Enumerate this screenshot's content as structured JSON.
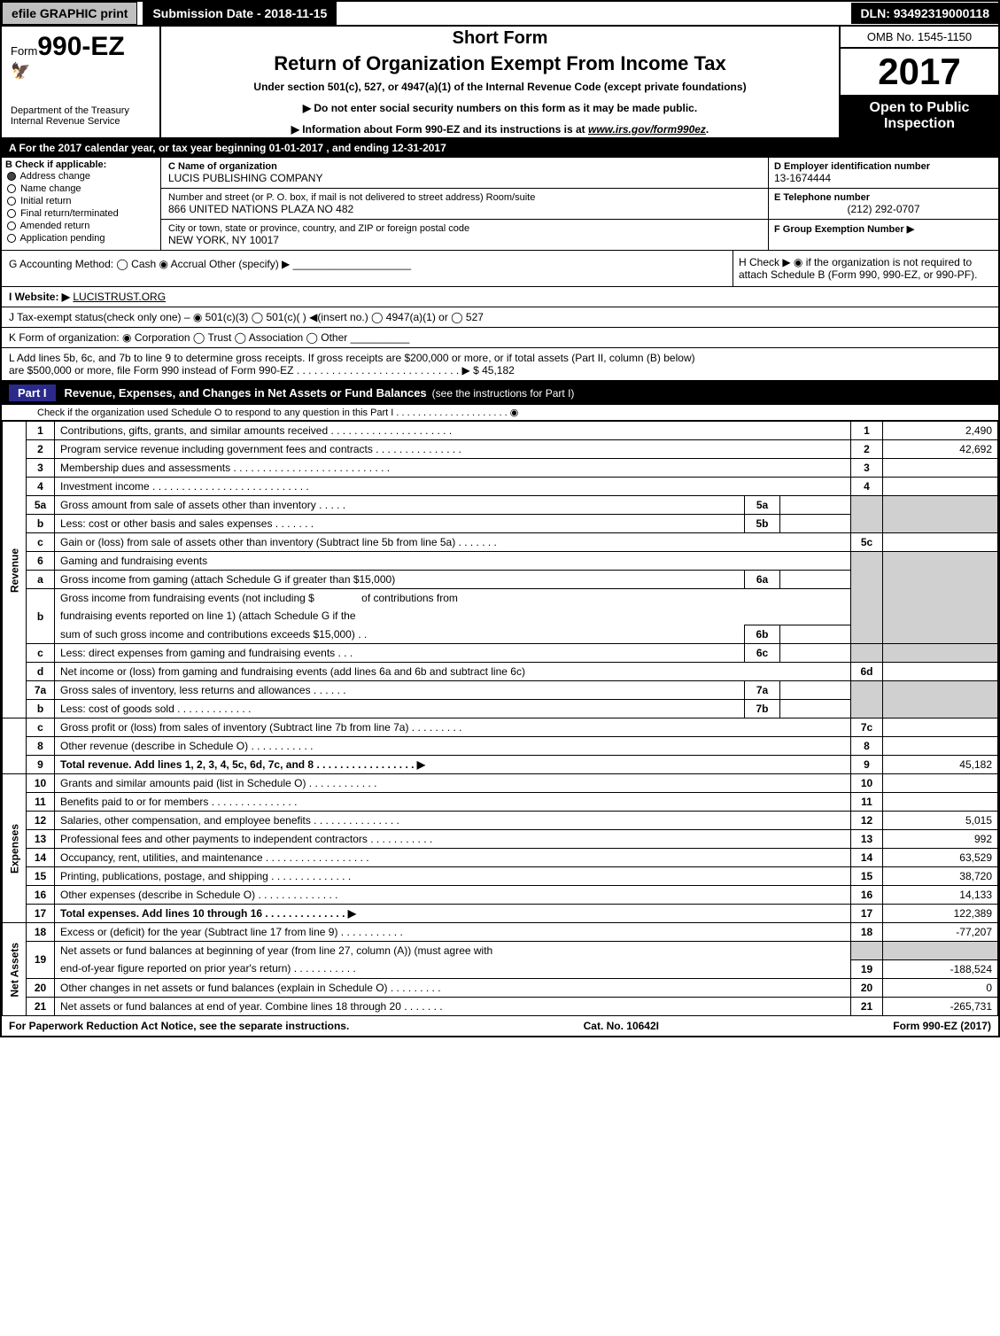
{
  "top": {
    "efile": "efile GRAPHIC print",
    "sub_date_label": "Submission Date - 2018-11-15",
    "dln": "DLN: 93492319000118"
  },
  "header": {
    "form_prefix": "Form",
    "form_num": "990-EZ",
    "dept": "Department of the Treasury\nInternal Revenue Service",
    "short_form": "Short Form",
    "title": "Return of Organization Exempt From Income Tax",
    "under": "Under section 501(c), 527, or 4947(a)(1) of the Internal Revenue Code (except private foundations)",
    "warn1": "▶ Do not enter social security numbers on this form as it may be made public.",
    "warn2_pre": "▶ Information about Form 990-EZ and its instructions is at ",
    "warn2_link": "www.irs.gov/form990ez",
    "warn2_post": ".",
    "omb": "OMB No. 1545-1150",
    "year": "2017",
    "open_pub": "Open to Public Inspection"
  },
  "row_a": "A  For the 2017 calendar year, or tax year beginning 01-01-2017          , and ending 12-31-2017",
  "section_b": {
    "title": "B  Check if applicable:",
    "items": [
      {
        "label": "Address change",
        "checked": true
      },
      {
        "label": "Name change",
        "checked": false
      },
      {
        "label": "Initial return",
        "checked": false
      },
      {
        "label": "Final return/terminated",
        "checked": false
      },
      {
        "label": "Amended return",
        "checked": false
      },
      {
        "label": "Application pending",
        "checked": false
      }
    ]
  },
  "section_c": {
    "label_c": "C Name of organization",
    "org": "LUCIS PUBLISHING COMPANY",
    "addr_label": "Number and street (or P. O. box, if mail is not delivered to street address)   Room/suite",
    "addr": "866 UNITED NATIONS PLAZA NO 482",
    "city_label": "City or town, state or province, country, and ZIP or foreign postal code",
    "city": "NEW YORK, NY  10017"
  },
  "right_meta": {
    "d_label": "D Employer identification number",
    "d_val": "13-1674444",
    "e_label": "E Telephone number",
    "e_val": "(212) 292-0707",
    "f_label": "F Group Exemption Number  ▶"
  },
  "g_row": "G Accounting Method:   ◯ Cash   ◉ Accrual   Other (specify) ▶ ____________________",
  "h_row": "H   Check ▶  ◉  if the organization is not required to attach Schedule B (Form 990, 990-EZ, or 990-PF).",
  "i_row_label": "I Website: ▶",
  "i_row_val": "LUCISTRUST.ORG",
  "j_row": "J Tax-exempt status(check only one) –  ◉ 501(c)(3)  ◯ 501(c)(  ) ◀(insert no.)  ◯ 4947(a)(1) or  ◯ 527",
  "k_row": "K Form of organization:   ◉ Corporation   ◯ Trust   ◯ Association   ◯ Other  __________",
  "l_row_1": "L Add lines 5b, 6c, and 7b to line 9 to determine gross receipts. If gross receipts are $200,000 or more, or if total assets (Part II, column (B) below)",
  "l_row_2": "are $500,000 or more, file Form 990 instead of Form 990-EZ  .  .  .  .  .  .  .  .  .  .  .  .  .  .  .  .  .  .  .  .  .  .  .  .  .  .  .  .  ▶ $ 45,182",
  "part1": {
    "badge": "Part I",
    "title": "Revenue, Expenses, and Changes in Net Assets or Fund Balances",
    "sub": "(see the instructions for Part I)",
    "check": "Check if the organization used Schedule O to respond to any question in this Part I .  .  .  .  .  .  .  .  .  .  .  .  .  .  .  .  .  .  .  .  .  ◉"
  },
  "lines": {
    "l1": {
      "n": "1",
      "text": "Contributions, gifts, grants, and similar amounts received  .  .  .  .  .  .  .  .  .  .  .  .  .  .  .  .  .  .  .  .  .",
      "rn": "1",
      "rv": "2,490"
    },
    "l2": {
      "n": "2",
      "text": "Program service revenue including government fees and contracts  .  .  .  .  .  .  .  .  .  .  .  .  .  .  .",
      "rn": "2",
      "rv": "42,692"
    },
    "l3": {
      "n": "3",
      "text": "Membership dues and assessments  .  .  .  .  .  .  .  .  .  .  .  .  .  .  .  .  .  .  .  .  .  .  .  .  .  .  .",
      "rn": "3",
      "rv": ""
    },
    "l4": {
      "n": "4",
      "text": "Investment income  .  .  .  .  .  .  .  .  .  .  .  .  .  .  .  .  .  .  .  .  .  .  .  .  .  .  .",
      "rn": "4",
      "rv": ""
    },
    "l5a": {
      "n": "5a",
      "text": "Gross amount from sale of assets other than inventory  .  .  .  .  .",
      "mn": "5a",
      "mv": ""
    },
    "l5b": {
      "n": "b",
      "text": "Less: cost or other basis and sales expenses  .  .  .  .  .  .  .",
      "mn": "5b",
      "mv": ""
    },
    "l5c": {
      "n": "c",
      "text": "Gain or (loss) from sale of assets other than inventory (Subtract line 5b from line 5a)  .  .  .  .  .  .  .",
      "rn": "5c",
      "rv": ""
    },
    "l6": {
      "n": "6",
      "text": "Gaming and fundraising events"
    },
    "l6a": {
      "n": "a",
      "text": "Gross income from gaming (attach Schedule G if greater than $15,000)",
      "mn": "6a",
      "mv": ""
    },
    "l6b": {
      "n": "b",
      "text1": "Gross income from fundraising events (not including $",
      "text2": "of contributions from",
      "text3": "fundraising events reported on line 1) (attach Schedule G if the",
      "text4": "sum of such gross income and contributions exceeds $15,000)   .   .",
      "mn": "6b",
      "mv": ""
    },
    "l6c": {
      "n": "c",
      "text": "Less: direct expenses from gaming and fundraising events      .    .    .",
      "mn": "6c",
      "mv": ""
    },
    "l6d": {
      "n": "d",
      "text": "Net income or (loss) from gaming and fundraising events (add lines 6a and 6b and subtract line 6c)",
      "rn": "6d",
      "rv": ""
    },
    "l7a": {
      "n": "7a",
      "text": "Gross sales of inventory, less returns and allowances  .  .  .  .  .  .",
      "mn": "7a",
      "mv": ""
    },
    "l7b": {
      "n": "b",
      "text": "Less: cost of goods sold        .   .   .   .   .   .   .   .   .   .   .   .   .",
      "mn": "7b",
      "mv": ""
    },
    "l7c": {
      "n": "c",
      "text": "Gross profit or (loss) from sales of inventory (Subtract line 7b from line 7a)  .   .   .   .   .   .   .   .   .",
      "rn": "7c",
      "rv": ""
    },
    "l8": {
      "n": "8",
      "text": "Other revenue (describe in Schedule O)                            .   .   .   .   .   .   .   .   .   .   .",
      "rn": "8",
      "rv": ""
    },
    "l9": {
      "n": "9",
      "text": "Total revenue. Add lines 1, 2, 3, 4, 5c, 6d, 7c, and 8  .   .   .   .   .   .   .   .   .   .   .   .   .   .   .   .   .   ▶",
      "rn": "9",
      "rv": "45,182"
    },
    "l10": {
      "n": "10",
      "text": "Grants and similar amounts paid (list in Schedule O)           .   .   .   .   .   .   .   .   .   .   .   .",
      "rn": "10",
      "rv": ""
    },
    "l11": {
      "n": "11",
      "text": "Benefits paid to or for members                    .   .   .   .   .   .   .   .   .   .   .   .   .   .   .",
      "rn": "11",
      "rv": ""
    },
    "l12": {
      "n": "12",
      "text": "Salaries, other compensation, and employee benefits  .   .   .   .   .   .   .   .   .   .   .   .   .   .   .",
      "rn": "12",
      "rv": "5,015"
    },
    "l13": {
      "n": "13",
      "text": "Professional fees and other payments to independent contractors  .   .   .   .   .   .   .   .   .   .   .",
      "rn": "13",
      "rv": "992"
    },
    "l14": {
      "n": "14",
      "text": "Occupancy, rent, utilities, and maintenance  .   .   .   .   .   .   .   .   .   .   .   .   .   .   .   .   .   .",
      "rn": "14",
      "rv": "63,529"
    },
    "l15": {
      "n": "15",
      "text": "Printing, publications, postage, and shipping           .   .   .   .   .   .   .   .   .   .   .   .   .   .",
      "rn": "15",
      "rv": "38,720"
    },
    "l16": {
      "n": "16",
      "text": "Other expenses (describe in Schedule O)               .   .   .   .   .   .   .   .   .   .   .   .   .   .",
      "rn": "16",
      "rv": "14,133"
    },
    "l17": {
      "n": "17",
      "text": "Total expenses. Add lines 10 through 16           .   .   .   .   .   .   .   .   .   .   .   .   .   .   ▶",
      "rn": "17",
      "rv": "122,389"
    },
    "l18": {
      "n": "18",
      "text": "Excess or (deficit) for the year (Subtract line 17 from line 9)        .   .   .   .   .   .   .   .   .   .   .",
      "rn": "18",
      "rv": "-77,207"
    },
    "l19": {
      "n": "19",
      "text1": "Net assets or fund balances at beginning of year (from line 27, column (A)) (must agree with",
      "text2": "end-of-year figure reported on prior year's return)               .   .   .   .   .   .   .   .   .   .   .",
      "rn": "19",
      "rv": "-188,524"
    },
    "l20": {
      "n": "20",
      "text": "Other changes in net assets or fund balances (explain in Schedule O)    .   .   .   .   .   .   .   .   .",
      "rn": "20",
      "rv": "0"
    },
    "l21": {
      "n": "21",
      "text": "Net assets or fund balances at end of year. Combine lines 18 through 20       .   .   .   .   .   .   .",
      "rn": "21",
      "rv": "-265,731"
    }
  },
  "side_labels": {
    "revenue": "Revenue",
    "expenses": "Expenses",
    "net_assets": "Net Assets"
  },
  "footer": {
    "left": "For Paperwork Reduction Act Notice, see the separate instructions.",
    "center": "Cat. No. 10642I",
    "right": "Form 990-EZ (2017)"
  },
  "colors": {
    "black": "#000000",
    "white": "#ffffff",
    "grey_btn": "#bfbfbf",
    "grey_cell": "#d0d0d0",
    "part_badge": "#2a2a8a"
  }
}
